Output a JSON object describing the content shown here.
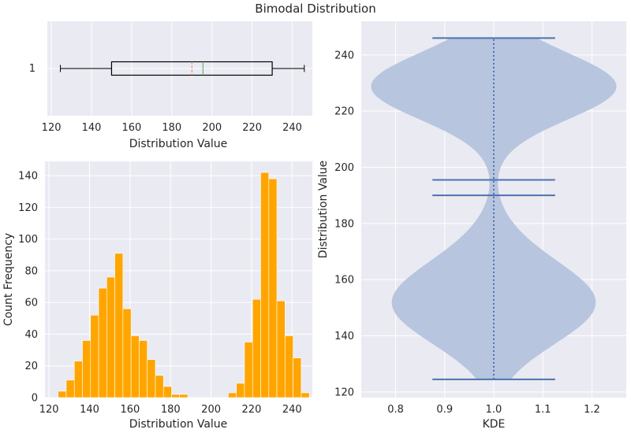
{
  "title": "Bimodal Distribution",
  "chart_data": [
    {
      "type": "box",
      "panel": "top-left",
      "category_label": "1",
      "whisker_low": 124.5,
      "q1": 150,
      "median": 195.5,
      "mean": 190,
      "q3": 230,
      "whisker_high": 246,
      "xlabel": "Distribution Value",
      "xlim": [
        118,
        250
      ],
      "xticks": [
        120,
        140,
        160,
        180,
        200,
        220,
        240
      ],
      "colors": {
        "box": "#000000",
        "median": "#55a868",
        "mean": "#dd8452"
      }
    },
    {
      "type": "bar",
      "subtype": "histogram",
      "panel": "bottom-left",
      "bin_edges": [
        124.5,
        128.5,
        132.5,
        136.5,
        140.5,
        144.5,
        148.5,
        152.5,
        156.5,
        160.5,
        164.5,
        168.5,
        172.5,
        176.5,
        180.5,
        184.5,
        188.5,
        192.5,
        196.5,
        200.5,
        204.5,
        208.5,
        212.5,
        216.5,
        220.5,
        224.5,
        228.5,
        232.5,
        236.5,
        240.5,
        244.5,
        248.5
      ],
      "values": [
        4,
        11,
        23,
        36,
        52,
        69,
        76,
        91,
        56,
        39,
        36,
        24,
        14,
        7,
        2,
        2,
        0,
        0,
        0,
        0,
        0,
        3,
        9,
        35,
        62,
        142,
        138,
        61,
        39,
        25,
        3
      ],
      "xlabel": "Distribution Value",
      "ylabel": "Count Frequency",
      "xlim": [
        118,
        250
      ],
      "ylim": [
        0,
        149
      ],
      "xticks": [
        120,
        140,
        160,
        180,
        200,
        220,
        240
      ],
      "yticks": [
        0,
        20,
        40,
        60,
        80,
        100,
        120,
        140
      ],
      "color": "#ffa500"
    },
    {
      "type": "violin",
      "panel": "right",
      "position": 1.0,
      "ymin": 124.5,
      "ymax": 246,
      "mean": 190,
      "median": 195.5,
      "xlabel": "KDE",
      "ylabel": "Distribution Value",
      "xlim": [
        0.73,
        1.27
      ],
      "ylim": [
        118,
        252
      ],
      "xticks": [
        "0.8",
        "0.9",
        "1.0",
        "1.1",
        "1.2"
      ],
      "yticks": [
        120,
        140,
        160,
        180,
        200,
        220,
        240
      ],
      "colors": {
        "body": "#b8c5df",
        "lines": "#4c72b0"
      }
    }
  ]
}
